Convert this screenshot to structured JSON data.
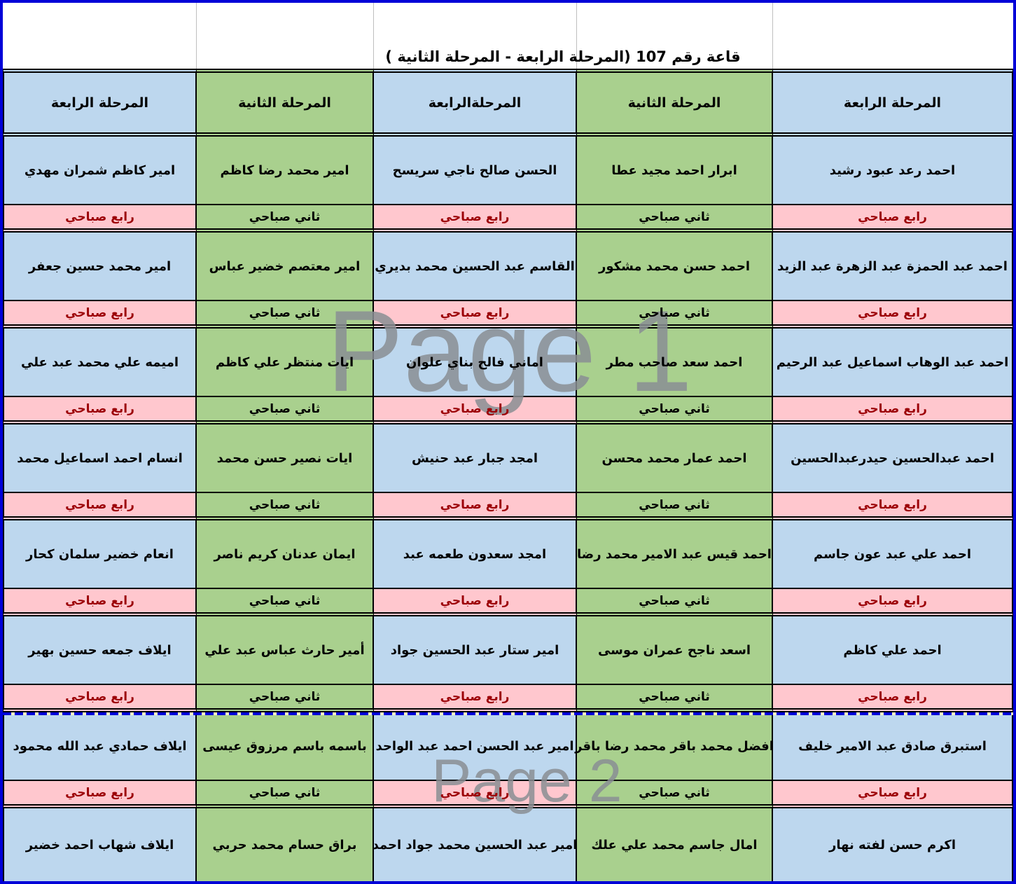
{
  "sheet_title": "قاعة رقم 107 (المرحلة الرابعة - المرحلة الثانية )",
  "watermarks": {
    "page1": "Page 1",
    "page2": "Page 2"
  },
  "columns": [
    {
      "header": "المرحلة الرابعة",
      "variant": "blue",
      "label": "رابع صباحي"
    },
    {
      "header": "المرحلة الثانية",
      "variant": "green",
      "label": "ثاني صباحي"
    },
    {
      "header": "المرحلةالرابعة",
      "variant": "blue",
      "label": "رابع صباحي"
    },
    {
      "header": "المرحلة الثانية",
      "variant": "green",
      "label": "ثاني صباحي"
    },
    {
      "header": "المرحلة الرابعة",
      "variant": "blue",
      "label": "رابع صباحي"
    }
  ],
  "rows": [
    {
      "cells": [
        "امير كاظم شمران مهدي",
        "امير محمد رضا كاظم",
        "الحسن صالح ناجي سريسح",
        "ابرار احمد مجيد عطا",
        "احمد رعد عبود رشيد"
      ]
    },
    {
      "cells": [
        "امير محمد حسين جعفر",
        "امير معتصم خضير عباس",
        "القاسم عبد الحسين محمد بديري",
        "احمد حسن محمد مشكور",
        "احمد عبد الحمزة عبد الزهرة عبد الزيد"
      ]
    },
    {
      "cells": [
        "اميمه علي محمد عبد علي",
        "ايات منتظر علي كاظم",
        "اماني فالح بناي علوان",
        "احمد سعد صاحب مطر",
        "احمد عبد الوهاب اسماعيل عبد الرحيم"
      ]
    },
    {
      "cells": [
        "انسام احمد اسماعيل محمد",
        "ايات نصير حسن محمد",
        "امجد جبار عبد حنيش",
        "احمد عمار محمد محسن",
        "احمد عبدالحسين حيدرعبدالحسين"
      ]
    },
    {
      "cells": [
        "انعام خضير سلمان كحار",
        "ايمان عدنان كريم ناصر",
        "امجد سعدون طعمه عبد",
        "احمد قيس عبد الامير محمد رضا",
        "احمد علي عبد عون جاسم"
      ]
    },
    {
      "cells": [
        "ايلاف جمعه حسين بهير",
        "أمير حارث عباس عبد علي",
        "امير ستار عبد الحسين جواد",
        "اسعد ناجح عمران موسى",
        "احمد علي كاظم"
      ]
    },
    {
      "cells": [
        "ايلاف حمادي عبد الله محمود",
        "باسمه باسم مرزوق عيسى",
        "امير عبد الحسن احمد عبد الواحد",
        "افضل محمد باقر محمد رضا باقر",
        "استبرق صادق عبد الامير خليف"
      ]
    },
    {
      "cells": [
        "ايلاف شهاب احمد خضير",
        "براق حسام محمد حربي",
        "امير عبد الحسين محمد جواد احمد",
        "امال جاسم محمد علي علك",
        "اكرم حسن لفته نهار"
      ]
    }
  ],
  "colors": {
    "blue": "#BDD7EE",
    "green": "#A9D08E",
    "pink": "#FFC7CE",
    "label_red": "#9C0006",
    "border": "#000000",
    "page_break_blue": "#0000D8",
    "watermark_gray": "#8A8F94"
  }
}
